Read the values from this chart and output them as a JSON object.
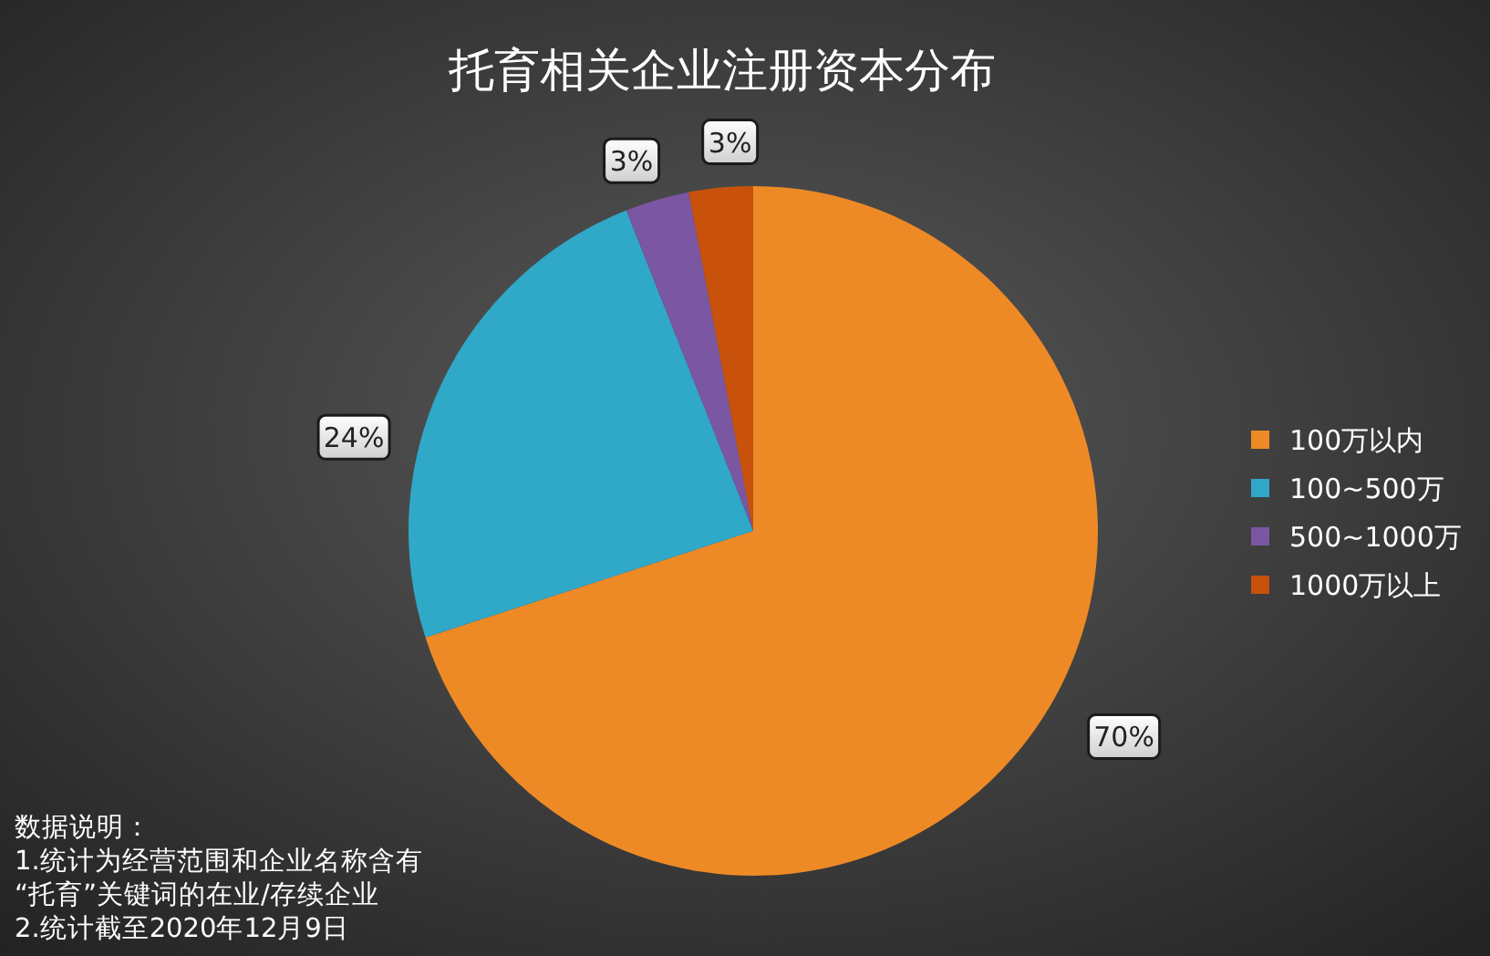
{
  "chart_data": {
    "type": "pie",
    "title": "托育相关企业注册资本分布",
    "categories": [
      "100万以内",
      "100~500万",
      "500~1000万",
      "1000万以上"
    ],
    "values": [
      70,
      24,
      3,
      3
    ],
    "colors": [
      "#ee8a26",
      "#30a8c8",
      "#7a56a3",
      "#c8520c"
    ],
    "value_labels": [
      "70%",
      "24%",
      "3%",
      "3%"
    ],
    "legend": "right",
    "annotations": [
      "数据说明：",
      "1.统计为经营范围和企业名称含有",
      "“托育”关键词的在业/存续企业",
      "2.统计截至2020年12月9日"
    ]
  }
}
